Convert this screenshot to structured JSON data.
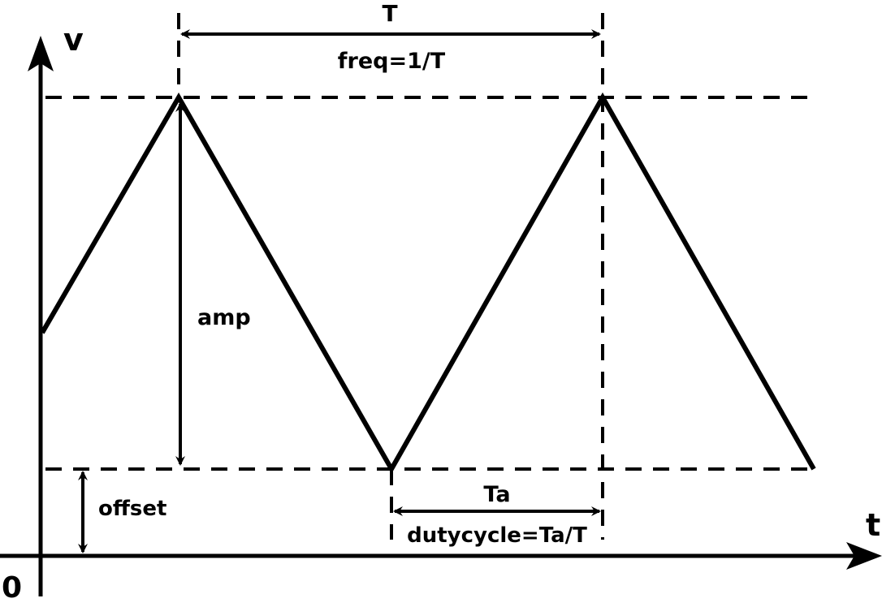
{
  "labels": {
    "v_axis": "v",
    "t_axis": "t",
    "origin": "0",
    "period": "T",
    "freq": "freq=1/T",
    "amp": "amp",
    "offset": "offset",
    "ta": "Ta",
    "dutycycle": "dutycycle=Ta/T"
  },
  "colors": {
    "stroke": "#000000",
    "background": "#ffffff"
  },
  "waveform": {
    "type": "triangle"
  }
}
